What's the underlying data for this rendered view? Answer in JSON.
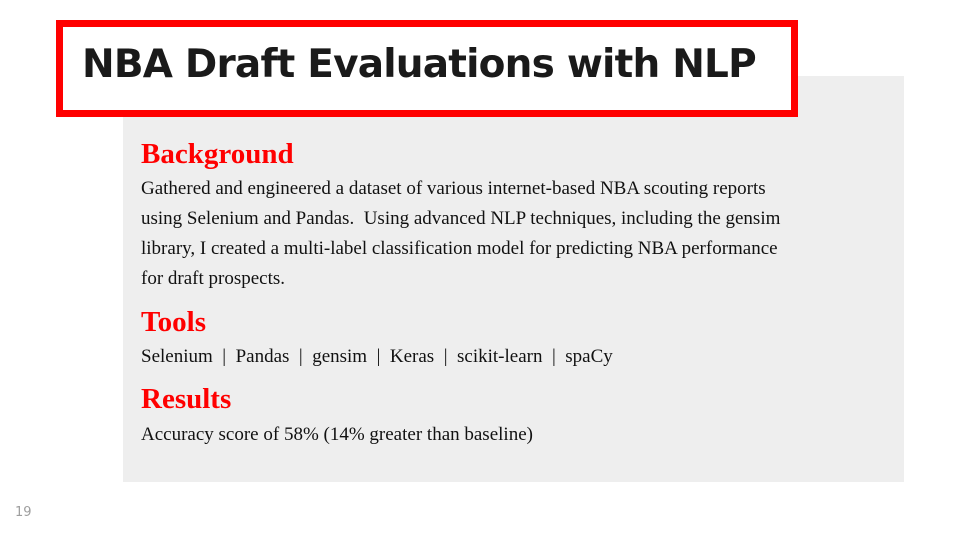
{
  "slide": {
    "title": "NBA Draft Evaluations with NLP",
    "page_number": "19",
    "colors": {
      "accent": "#ff0000",
      "panel_background": "#eeeeee",
      "title_text": "#1a1a1a",
      "body_text": "#111111",
      "page_number": "#9e9e9e"
    }
  },
  "sections": {
    "background": {
      "heading": "Background",
      "lines": [
        "Gathered and engineered a dataset of various internet-based NBA scouting reports",
        "using Selenium and Pandas.  Using advanced NLP techniques, including the gensim",
        "library, I created a multi-label classification model for predicting NBA performance",
        "for draft prospects."
      ]
    },
    "tools": {
      "heading": "Tools",
      "text": "Selenium  |  Pandas  |  gensim  |  Keras  |  scikit-learn  |  spaCy"
    },
    "results": {
      "heading": "Results",
      "text": "Accuracy score of 58% (14% greater than baseline)"
    }
  }
}
